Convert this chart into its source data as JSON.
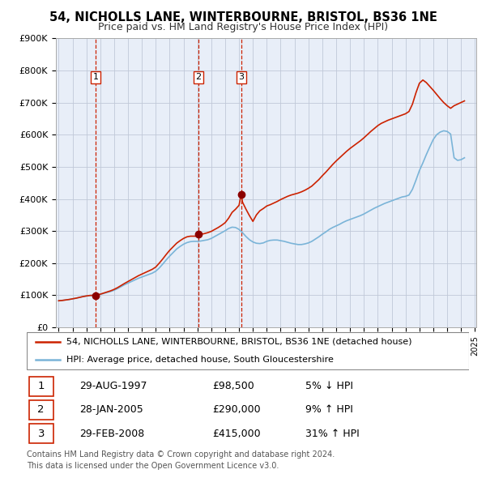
{
  "title": "54, NICHOLLS LANE, WINTERBOURNE, BRISTOL, BS36 1NE",
  "subtitle": "Price paid vs. HM Land Registry's House Price Index (HPI)",
  "ylim": [
    0,
    900000
  ],
  "yticks": [
    0,
    100000,
    200000,
    300000,
    400000,
    500000,
    600000,
    700000,
    800000,
    900000
  ],
  "ytick_labels": [
    "£0",
    "£100K",
    "£200K",
    "£300K",
    "£400K",
    "£500K",
    "£600K",
    "£700K",
    "£800K",
    "£900K"
  ],
  "x_start_year": 1995,
  "x_end_year": 2025,
  "sales": [
    {
      "year": 1997.66,
      "price": 98500,
      "label": "1"
    },
    {
      "year": 2005.08,
      "price": 290000,
      "label": "2"
    },
    {
      "year": 2008.16,
      "price": 415000,
      "label": "3"
    }
  ],
  "sale_vlines": [
    1997.66,
    2005.08,
    2008.16
  ],
  "hpi_color": "#7ab4d8",
  "price_color": "#cc2200",
  "sale_dot_color": "#8B0000",
  "vline_color": "#cc2200",
  "grid_color": "#c0c8d8",
  "chart_bg": "#e8eef8",
  "background_color": "#ffffff",
  "legend_entries": [
    "54, NICHOLLS LANE, WINTERBOURNE, BRISTOL, BS36 1NE (detached house)",
    "HPI: Average price, detached house, South Gloucestershire"
  ],
  "table_data": [
    {
      "num": "1",
      "date": "29-AUG-1997",
      "price": "£98,500",
      "hpi": "5% ↓ HPI"
    },
    {
      "num": "2",
      "date": "28-JAN-2005",
      "price": "£290,000",
      "hpi": "9% ↑ HPI"
    },
    {
      "num": "3",
      "date": "29-FEB-2008",
      "price": "£415,000",
      "hpi": "31% ↑ HPI"
    }
  ],
  "footer": "Contains HM Land Registry data © Crown copyright and database right 2024.\nThis data is licensed under the Open Government Licence v3.0.",
  "hpi_data_x": [
    1995.0,
    1995.25,
    1995.5,
    1995.75,
    1996.0,
    1996.25,
    1996.5,
    1996.75,
    1997.0,
    1997.25,
    1997.5,
    1997.75,
    1998.0,
    1998.25,
    1998.5,
    1998.75,
    1999.0,
    1999.25,
    1999.5,
    1999.75,
    2000.0,
    2000.25,
    2000.5,
    2000.75,
    2001.0,
    2001.25,
    2001.5,
    2001.75,
    2002.0,
    2002.25,
    2002.5,
    2002.75,
    2003.0,
    2003.25,
    2003.5,
    2003.75,
    2004.0,
    2004.25,
    2004.5,
    2004.75,
    2005.0,
    2005.25,
    2005.5,
    2005.75,
    2006.0,
    2006.25,
    2006.5,
    2006.75,
    2007.0,
    2007.25,
    2007.5,
    2007.75,
    2008.0,
    2008.25,
    2008.5,
    2008.75,
    2009.0,
    2009.25,
    2009.5,
    2009.75,
    2010.0,
    2010.25,
    2010.5,
    2010.75,
    2011.0,
    2011.25,
    2011.5,
    2011.75,
    2012.0,
    2012.25,
    2012.5,
    2012.75,
    2013.0,
    2013.25,
    2013.5,
    2013.75,
    2014.0,
    2014.25,
    2014.5,
    2014.75,
    2015.0,
    2015.25,
    2015.5,
    2015.75,
    2016.0,
    2016.25,
    2016.5,
    2016.75,
    2017.0,
    2017.25,
    2017.5,
    2017.75,
    2018.0,
    2018.25,
    2018.5,
    2018.75,
    2019.0,
    2019.25,
    2019.5,
    2019.75,
    2020.0,
    2020.25,
    2020.5,
    2020.75,
    2021.0,
    2021.25,
    2021.5,
    2021.75,
    2022.0,
    2022.25,
    2022.5,
    2022.75,
    2023.0,
    2023.25,
    2023.5,
    2023.75,
    2024.0,
    2024.25
  ],
  "hpi_data_y": [
    83000,
    84000,
    85500,
    87000,
    89000,
    91000,
    93500,
    96000,
    98000,
    99500,
    100000,
    101000,
    103000,
    106000,
    109000,
    112000,
    116000,
    121000,
    127000,
    133000,
    138000,
    143000,
    148000,
    153000,
    157000,
    161000,
    165000,
    169000,
    175000,
    185000,
    197000,
    210000,
    222000,
    233000,
    244000,
    252000,
    259000,
    264000,
    267000,
    268000,
    268000,
    269000,
    271000,
    273000,
    277000,
    283000,
    289000,
    295000,
    301000,
    308000,
    312000,
    311000,
    305000,
    295000,
    283000,
    273000,
    266000,
    262000,
    261000,
    263000,
    268000,
    271000,
    272000,
    272000,
    270000,
    268000,
    265000,
    262000,
    260000,
    258000,
    258000,
    260000,
    263000,
    268000,
    275000,
    282000,
    290000,
    297000,
    305000,
    311000,
    316000,
    321000,
    327000,
    332000,
    336000,
    340000,
    344000,
    348000,
    353000,
    359000,
    365000,
    371000,
    376000,
    381000,
    386000,
    390000,
    394000,
    398000,
    402000,
    406000,
    408000,
    412000,
    430000,
    458000,
    488000,
    512000,
    538000,
    562000,
    585000,
    600000,
    608000,
    612000,
    610000,
    602000,
    528000,
    520000,
    522000,
    528000
  ],
  "price_data_x": [
    1995.0,
    1995.25,
    1995.5,
    1995.75,
    1996.0,
    1996.25,
    1996.5,
    1996.75,
    1997.0,
    1997.25,
    1997.5,
    1997.66,
    1997.75,
    1998.0,
    1998.25,
    1998.5,
    1998.75,
    1999.0,
    1999.25,
    1999.5,
    1999.75,
    2000.0,
    2000.25,
    2000.5,
    2000.75,
    2001.0,
    2001.25,
    2001.5,
    2001.75,
    2002.0,
    2002.25,
    2002.5,
    2002.75,
    2003.0,
    2003.25,
    2003.5,
    2003.75,
    2004.0,
    2004.25,
    2004.5,
    2004.75,
    2005.0,
    2005.08,
    2005.25,
    2005.5,
    2005.75,
    2006.0,
    2006.25,
    2006.5,
    2006.75,
    2007.0,
    2007.25,
    2007.5,
    2007.75,
    2008.0,
    2008.16,
    2008.25,
    2008.5,
    2008.75,
    2009.0,
    2009.25,
    2009.5,
    2009.75,
    2010.0,
    2010.25,
    2010.5,
    2010.75,
    2011.0,
    2011.25,
    2011.5,
    2011.75,
    2012.0,
    2012.25,
    2012.5,
    2012.75,
    2013.0,
    2013.25,
    2013.5,
    2013.75,
    2014.0,
    2014.25,
    2014.5,
    2014.75,
    2015.0,
    2015.25,
    2015.5,
    2015.75,
    2016.0,
    2016.25,
    2016.5,
    2016.75,
    2017.0,
    2017.25,
    2017.5,
    2017.75,
    2018.0,
    2018.25,
    2018.5,
    2018.75,
    2019.0,
    2019.25,
    2019.5,
    2019.75,
    2020.0,
    2020.25,
    2020.5,
    2020.75,
    2021.0,
    2021.25,
    2021.5,
    2021.75,
    2022.0,
    2022.25,
    2022.5,
    2022.75,
    2023.0,
    2023.25,
    2023.5,
    2023.75,
    2024.0,
    2024.25
  ],
  "price_data_y": [
    83000,
    84000,
    85500,
    87000,
    89000,
    91000,
    93500,
    96000,
    98000,
    99500,
    100000,
    98500,
    101000,
    103500,
    107000,
    110500,
    114000,
    118500,
    124000,
    130500,
    137000,
    143000,
    149000,
    155000,
    161000,
    166000,
    171000,
    176000,
    181000,
    188000,
    200000,
    213000,
    227000,
    240000,
    251000,
    262000,
    270000,
    277000,
    282000,
    284000,
    284000,
    284000,
    290000,
    290000,
    292000,
    295000,
    299000,
    305000,
    311000,
    318000,
    326000,
    340000,
    358000,
    368000,
    380000,
    415000,
    390000,
    368000,
    348000,
    330000,
    350000,
    363000,
    370000,
    378000,
    382000,
    387000,
    392000,
    398000,
    403000,
    408000,
    412000,
    415000,
    418000,
    422000,
    427000,
    433000,
    440000,
    450000,
    460000,
    472000,
    483000,
    495000,
    507000,
    518000,
    528000,
    538000,
    548000,
    557000,
    565000,
    573000,
    581000,
    590000,
    600000,
    610000,
    619000,
    628000,
    635000,
    640000,
    645000,
    649000,
    653000,
    657000,
    661000,
    665000,
    672000,
    695000,
    730000,
    760000,
    770000,
    762000,
    750000,
    738000,
    725000,
    712000,
    700000,
    690000,
    682000,
    690000,
    695000,
    700000,
    705000
  ]
}
